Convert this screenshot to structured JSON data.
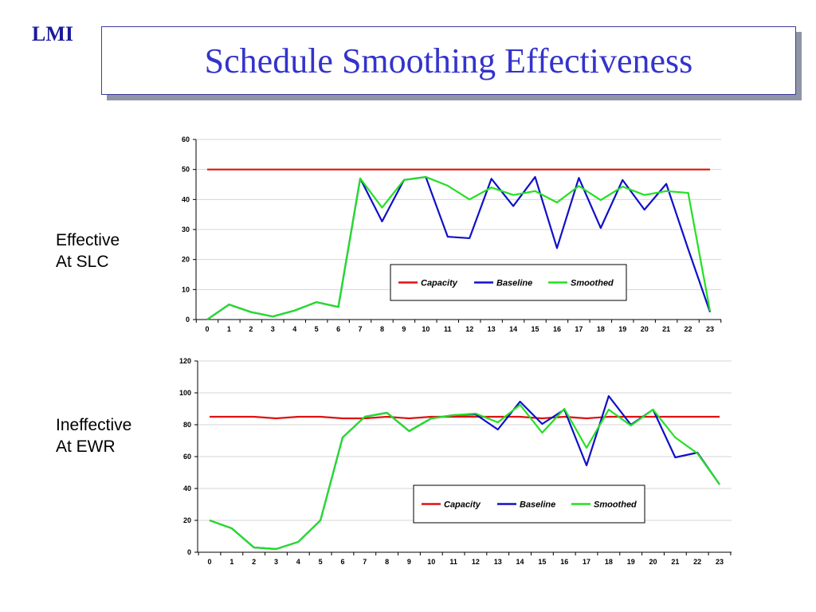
{
  "header": {
    "logo": "LMI",
    "title": "Schedule Smoothing Effectiveness"
  },
  "labels": {
    "chart1": [
      "Effective",
      "At SLC"
    ],
    "chart2": [
      "Ineffective",
      "At EWR"
    ]
  },
  "colors": {
    "capacity": "#e01010",
    "baseline": "#1010c8",
    "smoothed": "#22e022",
    "grid": "#d6d6d6"
  },
  "chart_data": [
    {
      "type": "line",
      "x": [
        0,
        1,
        2,
        3,
        4,
        5,
        6,
        7,
        8,
        9,
        10,
        11,
        12,
        13,
        14,
        15,
        16,
        17,
        18,
        19,
        20,
        21,
        22,
        23
      ],
      "xlim": [
        0,
        23
      ],
      "ylim": [
        0,
        60
      ],
      "yticks": [
        0,
        10,
        20,
        30,
        40,
        50,
        60
      ],
      "legend_position": "lower-right",
      "series": [
        {
          "name": "Capacity",
          "color_key": "capacity",
          "values": [
            50,
            50,
            50,
            50,
            50,
            50,
            50,
            50,
            50,
            50,
            50,
            50,
            50,
            50,
            50,
            50,
            50,
            50,
            50,
            50,
            50,
            50,
            50,
            50
          ]
        },
        {
          "name": "Baseline",
          "color_key": "baseline",
          "values": [
            0,
            5,
            2.5,
            1,
            3,
            5.8,
            4.2,
            47,
            32.7,
            46.5,
            47.5,
            27.6,
            27.1,
            46.9,
            37.8,
            47.5,
            23.8,
            47.2,
            30.5,
            46.5,
            36.6,
            45.2,
            23.5,
            2.5
          ]
        },
        {
          "name": "Smoothed",
          "color_key": "smoothed",
          "values": [
            0,
            5,
            2.5,
            1,
            3,
            5.8,
            4.2,
            47,
            37.3,
            46.5,
            47.5,
            44.6,
            40,
            44,
            41.5,
            42.8,
            39,
            44.5,
            39.8,
            44.3,
            41.5,
            42.8,
            42.2,
            2.8
          ]
        }
      ]
    },
    {
      "type": "line",
      "x": [
        0,
        1,
        2,
        3,
        4,
        5,
        6,
        7,
        8,
        9,
        10,
        11,
        12,
        13,
        14,
        15,
        16,
        17,
        18,
        19,
        20,
        21,
        22,
        23
      ],
      "xlim": [
        0,
        23
      ],
      "ylim": [
        0,
        120
      ],
      "yticks": [
        0,
        20,
        40,
        60,
        80,
        100,
        120
      ],
      "legend_position": "lower-right",
      "series": [
        {
          "name": "Capacity",
          "color_key": "capacity",
          "values": [
            85,
            85,
            85,
            84,
            85,
            85,
            84,
            84,
            85,
            84,
            85,
            85,
            85,
            85,
            85,
            84,
            85,
            84,
            85,
            85,
            85,
            85,
            85,
            85
          ]
        },
        {
          "name": "Baseline",
          "color_key": "baseline",
          "values": [
            20,
            15,
            3,
            2,
            6.5,
            20,
            72,
            85,
            87.5,
            76,
            84,
            86,
            86.5,
            77,
            94.5,
            80.5,
            89.5,
            54.5,
            98,
            80,
            89.5,
            59.5,
            62.5,
            42.5
          ]
        },
        {
          "name": "Smoothed",
          "color_key": "smoothed",
          "values": [
            20,
            15,
            3,
            2,
            6.5,
            20,
            72,
            85,
            87.5,
            76,
            84,
            86,
            87,
            81.5,
            92.5,
            75,
            90,
            65.5,
            89.5,
            79.5,
            89.5,
            72,
            62,
            42.5
          ]
        }
      ]
    }
  ]
}
